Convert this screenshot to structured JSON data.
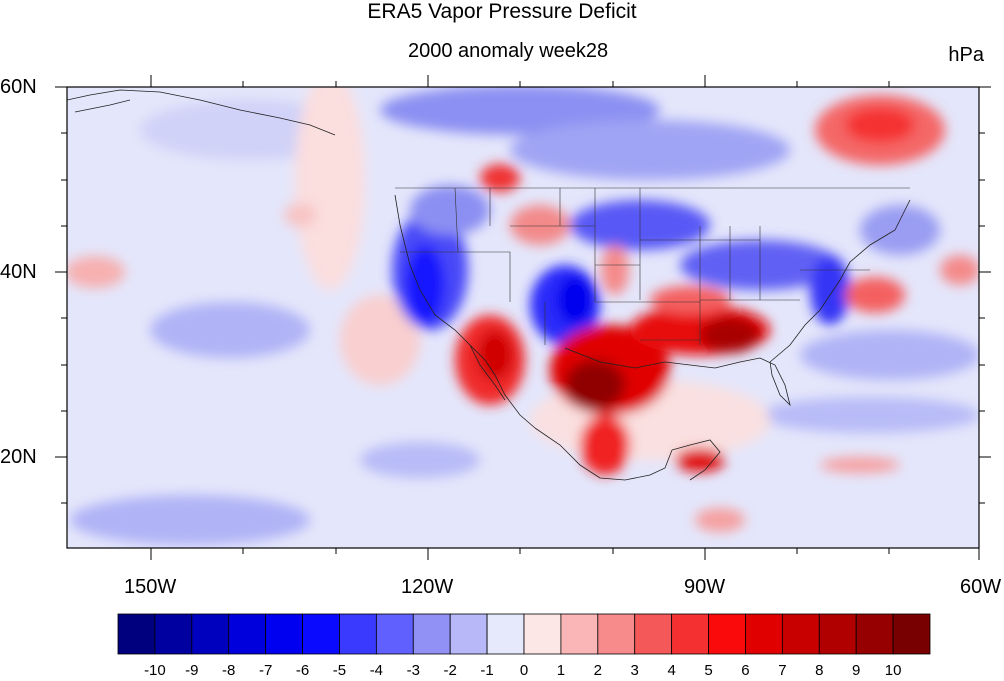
{
  "title": "ERA5 Vapor Pressure Deficit",
  "subtitle": "2000 anomaly week28",
  "units": "hPa",
  "map": {
    "lat_labels": [
      "60N",
      "40N",
      "20N"
    ],
    "lon_labels": [
      "150W",
      "120W",
      "90W",
      "60W"
    ],
    "lat_range": [
      10,
      60
    ],
    "lon_range": [
      -160,
      -60
    ]
  },
  "colorbar": {
    "labels": [
      "-10",
      "-9",
      "-8",
      "-7",
      "-6",
      "-5",
      "-4",
      "-3",
      "-2",
      "-1",
      "0",
      "1",
      "2",
      "3",
      "4",
      "5",
      "6",
      "7",
      "8",
      "9",
      "10"
    ],
    "colors": [
      "#00007f",
      "#0000a0",
      "#0000bf",
      "#0000dc",
      "#0000f0",
      "#0a0aff",
      "#3a3aff",
      "#6060ff",
      "#9090f5",
      "#b8b8f8",
      "#e6e8fb",
      "#fde6e6",
      "#fab6b6",
      "#f78a8a",
      "#f45858",
      "#f53030",
      "#fa0a0a",
      "#e00000",
      "#c80000",
      "#b00000",
      "#960000",
      "#780000"
    ]
  }
}
